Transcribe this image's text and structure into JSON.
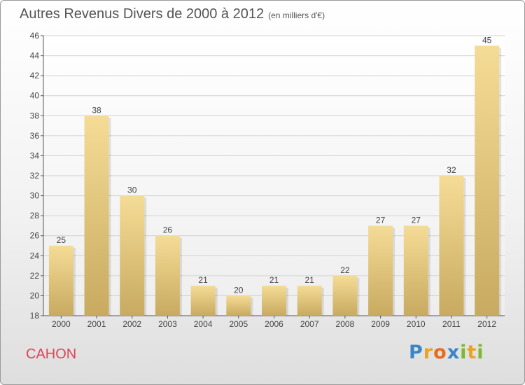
{
  "title": "Autres Revenus Divers de 2000 à 2012",
  "subtitle": "(en milliers d'€)",
  "commune": "CAHON",
  "brand": {
    "letters": [
      {
        "ch": "P",
        "color": "#3a86c8"
      },
      {
        "ch": "r",
        "color": "#e8a22a"
      },
      {
        "ch": "o",
        "color": "#e86a1c"
      },
      {
        "ch": "x",
        "color": "#3a86c8"
      },
      {
        "ch": "i",
        "color": "#7db832"
      },
      {
        "ch": "t",
        "color": "#e8a22a"
      },
      {
        "ch": "i",
        "color": "#7db832"
      }
    ]
  },
  "chart_data": {
    "type": "bar",
    "categories": [
      "2000",
      "2001",
      "2002",
      "2003",
      "2004",
      "2005",
      "2006",
      "2007",
      "2008",
      "2009",
      "2010",
      "2011",
      "2012"
    ],
    "values": [
      25,
      38,
      30,
      26,
      21,
      20,
      21,
      21,
      22,
      27,
      27,
      32,
      45
    ],
    "ylim": [
      18,
      46
    ],
    "yticks": [
      18,
      20,
      22,
      24,
      26,
      28,
      30,
      32,
      34,
      36,
      38,
      40,
      42,
      44,
      46
    ],
    "grid": true,
    "bar_color_top": "#f5dc96",
    "bar_color_bottom": "#c8aa60"
  }
}
